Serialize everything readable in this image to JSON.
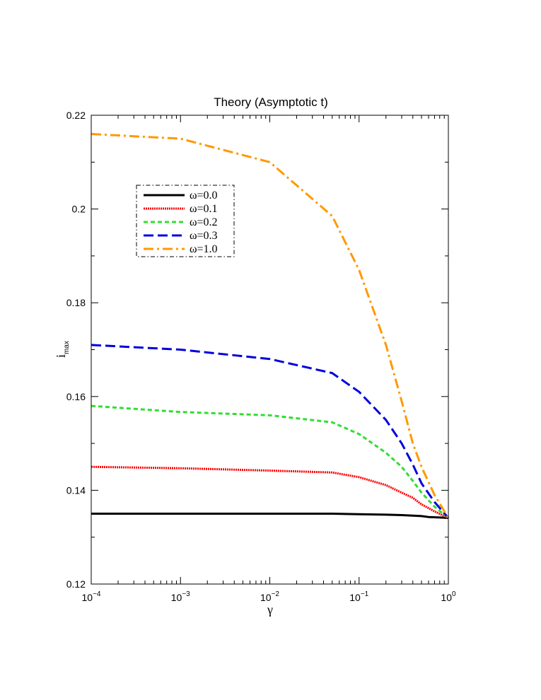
{
  "chart_data": {
    "type": "line",
    "title": "Theory (Asymptotic t)",
    "xlabel": "γ",
    "ylabel": {
      "main": "i",
      "sub": "max"
    },
    "x_scale": "log",
    "xlim": [
      0.0001,
      1
    ],
    "ylim": [
      0.12,
      0.22
    ],
    "x_ticks": [
      {
        "value": 0.0001,
        "base": "10",
        "exp": "−4"
      },
      {
        "value": 0.001,
        "base": "10",
        "exp": "−3"
      },
      {
        "value": 0.01,
        "base": "10",
        "exp": "−2"
      },
      {
        "value": 0.1,
        "base": "10",
        "exp": "−1"
      },
      {
        "value": 1,
        "base": "10",
        "exp": "0"
      }
    ],
    "y_ticks": [
      {
        "value": 0.12,
        "label": "0.12"
      },
      {
        "value": 0.14,
        "label": "0.14"
      },
      {
        "value": 0.16,
        "label": "0.16"
      },
      {
        "value": 0.18,
        "label": "0.18"
      },
      {
        "value": 0.2,
        "label": "0.2"
      },
      {
        "value": 0.22,
        "label": "0.22"
      }
    ],
    "grid": false,
    "legend_position": "upper-left",
    "series": [
      {
        "name": "ω=0.0",
        "color": "#000000",
        "style": "solid",
        "x": [
          0.0001,
          0.001,
          0.01,
          0.05,
          0.1,
          0.2,
          0.3,
          0.4,
          0.5,
          0.6,
          0.8,
          1
        ],
        "y": [
          0.135,
          0.135,
          0.135,
          0.135,
          0.1349,
          0.1348,
          0.1347,
          0.1346,
          0.1345,
          0.1343,
          0.1342,
          0.1341
        ]
      },
      {
        "name": "ω=0.1",
        "color": "#ff0000",
        "style": "dotted",
        "x": [
          0.0001,
          0.001,
          0.01,
          0.05,
          0.1,
          0.2,
          0.3,
          0.4,
          0.5,
          0.7,
          1
        ],
        "y": [
          0.145,
          0.1447,
          0.1442,
          0.1438,
          0.1428,
          0.1411,
          0.1395,
          0.1384,
          0.137,
          0.1355,
          0.1341
        ]
      },
      {
        "name": "ω=0.2",
        "color": "#33dd33",
        "style": "dashed-short",
        "x": [
          0.0001,
          0.001,
          0.01,
          0.05,
          0.1,
          0.2,
          0.3,
          0.4,
          0.5,
          0.7,
          1
        ],
        "y": [
          0.158,
          0.1567,
          0.156,
          0.1545,
          0.152,
          0.148,
          0.145,
          0.142,
          0.1395,
          0.1365,
          0.1341
        ]
      },
      {
        "name": "ω=0.3",
        "color": "#0000dd",
        "style": "dashed-long",
        "x": [
          0.0001,
          0.001,
          0.01,
          0.05,
          0.1,
          0.2,
          0.3,
          0.4,
          0.5,
          0.7,
          1
        ],
        "y": [
          0.171,
          0.17,
          0.168,
          0.165,
          0.161,
          0.155,
          0.15,
          0.1455,
          0.1415,
          0.1375,
          0.1341
        ]
      },
      {
        "name": "ω=1.0",
        "color": "#ff9900",
        "style": "dash-dot",
        "x": [
          0.0001,
          0.001,
          0.01,
          0.05,
          0.1,
          0.2,
          0.3,
          0.4,
          0.5,
          0.7,
          1
        ],
        "y": [
          0.216,
          0.215,
          0.21,
          0.1985,
          0.187,
          0.171,
          0.159,
          0.15,
          0.145,
          0.139,
          0.1341
        ]
      }
    ]
  }
}
